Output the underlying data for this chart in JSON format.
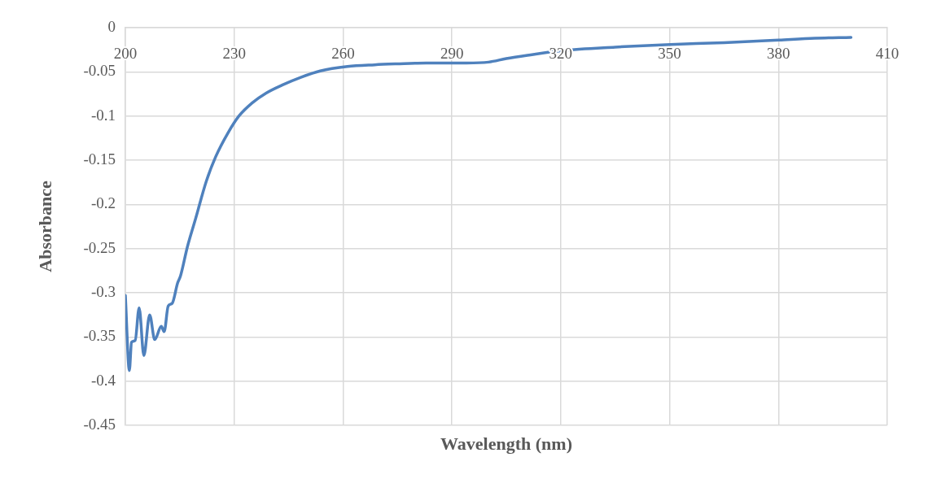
{
  "chart_data": {
    "type": "line",
    "xlabel": "Wavelength (nm)",
    "ylabel": "Absorbance",
    "xlim": [
      200,
      410
    ],
    "xticks": [
      200,
      230,
      260,
      290,
      320,
      350,
      380,
      410
    ],
    "ylim": [
      -0.45,
      0
    ],
    "yticks": [
      -0.45,
      -0.4,
      -0.35,
      -0.3,
      -0.25,
      -0.2,
      -0.15,
      -0.1,
      -0.05,
      0
    ],
    "grid": true,
    "legend": false,
    "marker": "none",
    "series": [
      {
        "color": "#4f81bd",
        "x": [
          200,
          201.1,
          201.7,
          202.7,
          203.8,
          205.1,
          206.7,
          208.1,
          209.9,
          210.7,
          211.8,
          212.9,
          214.4,
          215.2,
          217.1,
          219.3,
          222.3,
          224.9,
          228.3,
          231.3,
          235,
          238.8,
          243.2,
          248.5,
          253.7,
          261.2,
          268.7,
          274.7,
          282.9,
          294,
          300.1,
          305,
          311.3,
          320.3,
          335,
          350.2,
          365,
          380.1,
          390,
          400
        ],
        "values": [
          -0.303,
          -0.388,
          -0.356,
          -0.354,
          -0.317,
          -0.371,
          -0.325,
          -0.353,
          -0.338,
          -0.344,
          -0.315,
          -0.312,
          -0.289,
          -0.281,
          -0.248,
          -0.217,
          -0.174,
          -0.146,
          -0.119,
          -0.1,
          -0.085,
          -0.074,
          -0.065,
          -0.056,
          -0.049,
          -0.044,
          -0.042,
          -0.041,
          -0.04,
          -0.04,
          -0.039,
          -0.035,
          -0.031,
          -0.026,
          -0.022,
          -0.019,
          -0.017,
          -0.014,
          -0.012,
          -0.011
        ]
      }
    ]
  }
}
